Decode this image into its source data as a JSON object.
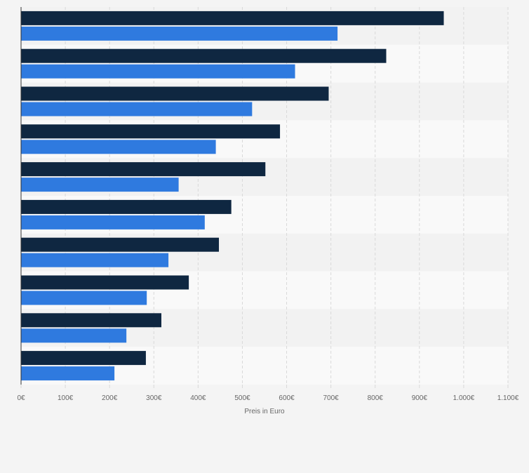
{
  "chart_data": {
    "type": "bar",
    "orientation": "horizontal",
    "title": "",
    "xlabel": "Preis in Euro",
    "ylabel": "",
    "xlim": [
      0,
      1100
    ],
    "x_tick_labels": [
      "0€",
      "100€",
      "200€",
      "300€",
      "400€",
      "500€",
      "600€",
      "700€",
      "800€",
      "900€",
      "1.000€",
      "1.100€"
    ],
    "grid": true,
    "legend": "none",
    "categories": [
      "",
      "",
      "",
      "",
      "",
      "",
      "",
      "",
      "",
      ""
    ],
    "series": [
      {
        "color": "#0f2741",
        "values": [
          955,
          825,
          695,
          585,
          552,
          475,
          447,
          379,
          317,
          282
        ]
      },
      {
        "color": "#2f7adf",
        "values": [
          715,
          619,
          522,
          440,
          356,
          415,
          333,
          284,
          238,
          211
        ]
      }
    ]
  },
  "colors": {
    "background": "#f4f4f4",
    "band_light": "#f9f9f9",
    "band_dark": "#f2f2f2",
    "gridline": "#d9d9d9",
    "axis": "#333333",
    "tick_text": "#666666"
  }
}
